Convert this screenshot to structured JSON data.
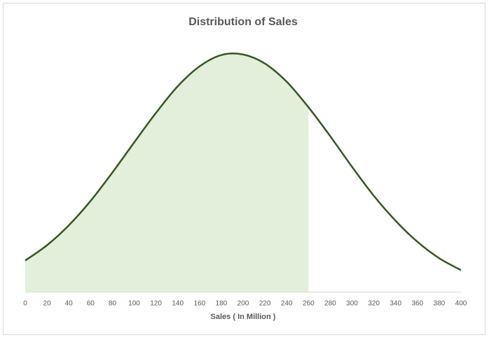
{
  "chart_data": {
    "type": "area-curve",
    "title": "Distribution of Sales",
    "x_label": "Sales ( In Million )",
    "x": [
      0,
      20,
      40,
      60,
      80,
      100,
      120,
      140,
      160,
      180,
      200,
      220,
      240,
      260,
      280,
      300,
      320,
      340,
      360,
      380,
      400
    ],
    "values": [
      0.55,
      0.82,
      1.17,
      1.6,
      2.1,
      2.63,
      3.15,
      3.62,
      3.97,
      4.17,
      4.18,
      4.02,
      3.7,
      3.25,
      2.74,
      2.2,
      1.69,
      1.25,
      0.88,
      0.59,
      0.38
    ],
    "color": "#375623",
    "shade_color": "#e2efda",
    "shade_range": [
      0,
      260
    ],
    "xlim": [
      0,
      400
    ],
    "xticks": [
      0,
      20,
      40,
      60,
      80,
      100,
      120,
      140,
      160,
      180,
      200,
      220,
      240,
      260,
      280,
      300,
      320,
      340,
      360,
      380,
      400
    ],
    "ylim": [
      0,
      4.4
    ],
    "grid": false
  }
}
